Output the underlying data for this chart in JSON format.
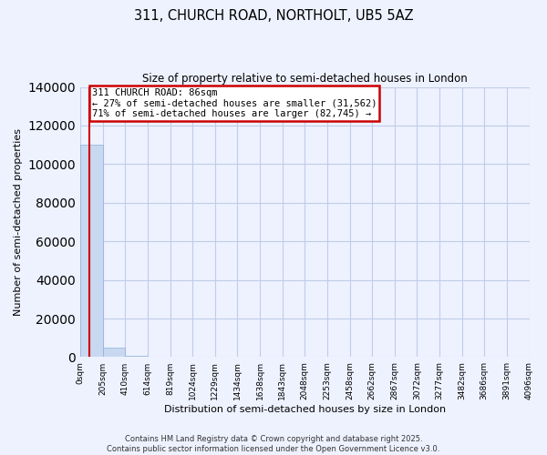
{
  "title": "311, CHURCH ROAD, NORTHOLT, UB5 5AZ",
  "subtitle": "Size of property relative to semi-detached houses in London",
  "xlabel": "Distribution of semi-detached houses by size in London",
  "ylabel": "Number of semi-detached properties",
  "property_size": 86,
  "property_name": "311 CHURCH ROAD",
  "pct_smaller": 27,
  "pct_larger": 71,
  "n_smaller": 31562,
  "n_larger": 82745,
  "bar_color": "#c8d8f0",
  "bar_edge_color": "#8ab0d8",
  "vline_color": "#cc0000",
  "annotation_box_color": "#cc0000",
  "bin_edges": [
    0,
    205,
    410,
    614,
    819,
    1024,
    1229,
    1434,
    1638,
    1843,
    2048,
    2253,
    2458,
    2662,
    2867,
    3072,
    3277,
    3482,
    3686,
    3891,
    4096
  ],
  "bin_labels": [
    "0sqm",
    "205sqm",
    "410sqm",
    "614sqm",
    "819sqm",
    "1024sqm",
    "1229sqm",
    "1434sqm",
    "1638sqm",
    "1843sqm",
    "2048sqm",
    "2253sqm",
    "2458sqm",
    "2662sqm",
    "2867sqm",
    "3072sqm",
    "3277sqm",
    "3482sqm",
    "3686sqm",
    "3891sqm",
    "4096sqm"
  ],
  "bin_counts": [
    110000,
    5000,
    600,
    200,
    80,
    40,
    20,
    10,
    8,
    5,
    4,
    3,
    2,
    2,
    1,
    1,
    1,
    1,
    0,
    0
  ],
  "ylim": [
    0,
    140000
  ],
  "yticks": [
    0,
    20000,
    40000,
    60000,
    80000,
    100000,
    120000,
    140000
  ],
  "footer_line1": "Contains HM Land Registry data © Crown copyright and database right 2025.",
  "footer_line2": "Contains public sector information licensed under the Open Government Licence v3.0.",
  "background_color": "#eef2ff",
  "grid_color": "#c0cce8"
}
